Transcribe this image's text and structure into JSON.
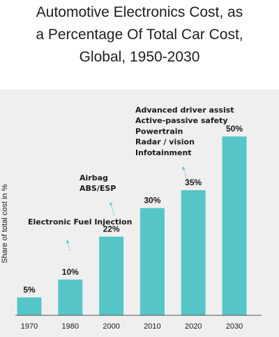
{
  "chart_data": {
    "type": "bar",
    "title_lines": [
      "Automotive Electronics Cost, as",
      "a Percentage Of Total Car Cost,",
      "Global, 1950-2030"
    ],
    "ylabel": "Share of total cost in %",
    "xlabel": "",
    "categories": [
      "1970",
      "1980",
      "2000",
      "2010",
      "2020",
      "2030"
    ],
    "values": [
      5,
      10,
      22,
      30,
      35,
      50
    ],
    "value_labels": [
      "5%",
      "10%",
      "22%",
      "30%",
      "35%",
      "50%"
    ],
    "ylim": [
      0,
      52
    ],
    "grid": false,
    "colors": {
      "bar": "#56c5c8",
      "background": "#efefef"
    },
    "annotations": [
      {
        "category": "1980",
        "lines": [
          "Electronic Fuel Injection"
        ]
      },
      {
        "category": "2000",
        "lines": [
          "Airbag",
          "ABS/ESP"
        ]
      },
      {
        "category": "2020",
        "lines": [
          "Advanced driver assist",
          "Active-passive safety",
          "Powertrain",
          "Radar / vision",
          "Infotainment"
        ]
      }
    ]
  }
}
